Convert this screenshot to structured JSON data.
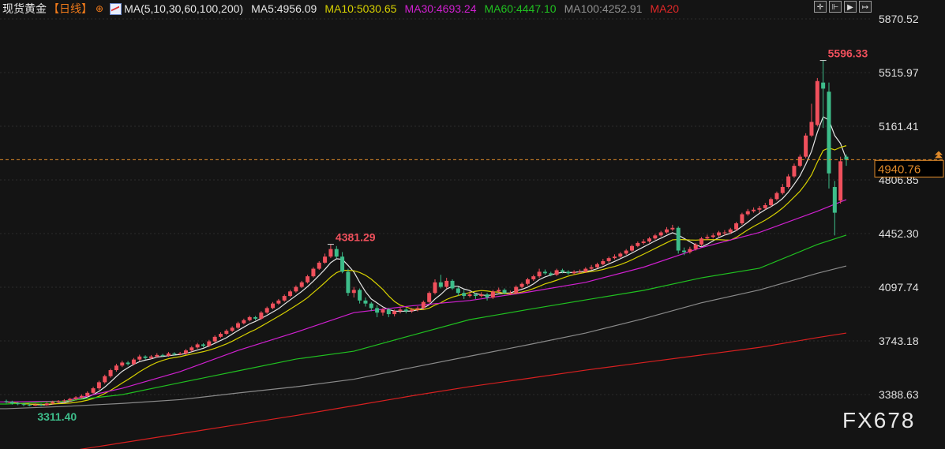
{
  "header": {
    "instrument": "现货黄金",
    "period": "【日线】",
    "indicator": "MA(5,10,30,60,100,200)",
    "ma_readouts": [
      {
        "label": "MA5:4956.09",
        "color": "#e6e6e6"
      },
      {
        "label": "MA10:5030.65",
        "color": "#d6d000"
      },
      {
        "label": "MA30:4693.24",
        "color": "#d020d0"
      },
      {
        "label": "MA60:4447.10",
        "color": "#20c020"
      },
      {
        "label": "MA100:4252.91",
        "color": "#909090"
      },
      {
        "label": "MA20",
        "color": "#e02828"
      }
    ]
  },
  "toolbar": [
    "crosshair-icon",
    "zoom-in-icon",
    "play-icon",
    "move-right-icon"
  ],
  "watermark": "FX678",
  "colors": {
    "up": "#f0505c",
    "down": "#3dbd8a",
    "background": "#141414",
    "current_price": "#e08a2a"
  },
  "chart_data": {
    "type": "candlestick",
    "title": "现货黄金 日线",
    "ylim": [
      2900,
      5900
    ],
    "yticks": [
      "5870.52",
      "5515.97",
      "5161.41",
      "4806.85",
      "4452.30",
      "4097.74",
      "3743.18",
      "3388.63"
    ],
    "current_price": "4940.76",
    "annotations": [
      {
        "text": "5596.33",
        "index": 141,
        "price": 5596.33,
        "color": "#f0505c"
      },
      {
        "text": "4381.29",
        "index": 56,
        "price": 4381.29,
        "color": "#f0505c"
      },
      {
        "text": "3311.40",
        "index": 4,
        "price": 3311.4,
        "color": "#3dbd8a"
      }
    ],
    "candles_ohlc": [
      [
        3345,
        3355,
        3330,
        3340
      ],
      [
        3340,
        3348,
        3322,
        3330
      ],
      [
        3330,
        3338,
        3318,
        3325
      ],
      [
        3325,
        3333,
        3312,
        3320
      ],
      [
        3320,
        3328,
        3311.4,
        3315
      ],
      [
        3315,
        3330,
        3313,
        3322
      ],
      [
        3322,
        3330,
        3312,
        3318
      ],
      [
        3318,
        3338,
        3314,
        3330
      ],
      [
        3330,
        3348,
        3322,
        3340
      ],
      [
        3340,
        3352,
        3332,
        3345
      ],
      [
        3345,
        3358,
        3338,
        3350
      ],
      [
        3350,
        3368,
        3342,
        3360
      ],
      [
        3360,
        3378,
        3352,
        3370
      ],
      [
        3370,
        3390,
        3362,
        3380
      ],
      [
        3380,
        3410,
        3372,
        3400
      ],
      [
        3400,
        3440,
        3392,
        3430
      ],
      [
        3430,
        3480,
        3420,
        3470
      ],
      [
        3470,
        3520,
        3460,
        3510
      ],
      [
        3510,
        3560,
        3500,
        3550
      ],
      [
        3550,
        3592,
        3540,
        3580
      ],
      [
        3580,
        3612,
        3570,
        3600
      ],
      [
        3600,
        3610,
        3580,
        3590
      ],
      [
        3590,
        3630,
        3582,
        3620
      ],
      [
        3620,
        3652,
        3610,
        3640
      ],
      [
        3640,
        3648,
        3620,
        3630
      ],
      [
        3630,
        3650,
        3622,
        3640
      ],
      [
        3640,
        3662,
        3632,
        3650
      ],
      [
        3650,
        3658,
        3636,
        3645
      ],
      [
        3645,
        3670,
        3638,
        3660
      ],
      [
        3660,
        3668,
        3645,
        3655
      ],
      [
        3655,
        3670,
        3648,
        3660
      ],
      [
        3660,
        3690,
        3652,
        3680
      ],
      [
        3680,
        3710,
        3672,
        3700
      ],
      [
        3700,
        3730,
        3692,
        3720
      ],
      [
        3720,
        3728,
        3700,
        3710
      ],
      [
        3710,
        3750,
        3702,
        3740
      ],
      [
        3740,
        3780,
        3732,
        3770
      ],
      [
        3770,
        3800,
        3762,
        3790
      ],
      [
        3790,
        3820,
        3782,
        3810
      ],
      [
        3810,
        3840,
        3802,
        3830
      ],
      [
        3830,
        3870,
        3822,
        3860
      ],
      [
        3860,
        3890,
        3852,
        3880
      ],
      [
        3880,
        3910,
        3872,
        3900
      ],
      [
        3900,
        3908,
        3880,
        3890
      ],
      [
        3890,
        3940,
        3882,
        3930
      ],
      [
        3930,
        3970,
        3922,
        3960
      ],
      [
        3960,
        4000,
        3952,
        3990
      ],
      [
        3990,
        4020,
        3982,
        4010
      ],
      [
        4010,
        4050,
        4002,
        4040
      ],
      [
        4040,
        4080,
        4032,
        4070
      ],
      [
        4070,
        4110,
        4062,
        4100
      ],
      [
        4100,
        4140,
        4092,
        4130
      ],
      [
        4130,
        4180,
        4122,
        4170
      ],
      [
        4170,
        4230,
        4162,
        4220
      ],
      [
        4220,
        4270,
        4212,
        4260
      ],
      [
        4260,
        4320,
        4252,
        4300
      ],
      [
        4300,
        4381.29,
        4290,
        4350
      ],
      [
        4350,
        4370,
        4290,
        4300
      ],
      [
        4300,
        4330,
        4190,
        4200
      ],
      [
        4200,
        4220,
        4040,
        4060
      ],
      [
        4060,
        4100,
        4030,
        4080
      ],
      [
        4080,
        4090,
        3990,
        4010
      ],
      [
        4010,
        4030,
        3970,
        3990
      ],
      [
        3990,
        4000,
        3940,
        3960
      ],
      [
        3960,
        3980,
        3900,
        3930
      ],
      [
        3930,
        3960,
        3910,
        3950
      ],
      [
        3950,
        3960,
        3900,
        3920
      ],
      [
        3920,
        3950,
        3905,
        3940
      ],
      [
        3940,
        3962,
        3925,
        3950
      ],
      [
        3950,
        3960,
        3925,
        3940
      ],
      [
        3940,
        3960,
        3928,
        3950
      ],
      [
        3950,
        3972,
        3938,
        3960
      ],
      [
        3960,
        4010,
        3950,
        4000
      ],
      [
        4000,
        4070,
        3990,
        4060
      ],
      [
        4060,
        4150,
        4050,
        4130
      ],
      [
        4130,
        4180,
        4090,
        4100
      ],
      [
        4100,
        4160,
        4090,
        4140
      ],
      [
        4140,
        4150,
        4080,
        4090
      ],
      [
        4090,
        4100,
        4040,
        4060
      ],
      [
        4060,
        4080,
        4020,
        4040
      ],
      [
        4040,
        4070,
        4030,
        4050
      ],
      [
        4050,
        4060,
        4020,
        4040
      ],
      [
        4040,
        4065,
        4030,
        4050
      ],
      [
        4050,
        4060,
        4010,
        4030
      ],
      [
        4030,
        4080,
        4020,
        4070
      ],
      [
        4070,
        4095,
        4060,
        4080
      ],
      [
        4080,
        4090,
        4050,
        4060
      ],
      [
        4060,
        4075,
        4045,
        4060
      ],
      [
        4060,
        4110,
        4050,
        4100
      ],
      [
        4100,
        4130,
        4090,
        4120
      ],
      [
        4120,
        4160,
        4110,
        4150
      ],
      [
        4150,
        4180,
        4140,
        4170
      ],
      [
        4170,
        4220,
        4160,
        4200
      ],
      [
        4200,
        4215,
        4180,
        4190
      ],
      [
        4190,
        4200,
        4170,
        4180
      ],
      [
        4180,
        4220,
        4172,
        4210
      ],
      [
        4210,
        4220,
        4190,
        4200
      ],
      [
        4200,
        4210,
        4180,
        4190
      ],
      [
        4190,
        4210,
        4182,
        4200
      ],
      [
        4200,
        4215,
        4188,
        4200
      ],
      [
        4200,
        4230,
        4192,
        4220
      ],
      [
        4220,
        4245,
        4212,
        4230
      ],
      [
        4230,
        4260,
        4222,
        4250
      ],
      [
        4250,
        4285,
        4242,
        4270
      ],
      [
        4270,
        4300,
        4260,
        4290
      ],
      [
        4290,
        4315,
        4282,
        4300
      ],
      [
        4300,
        4330,
        4292,
        4320
      ],
      [
        4320,
        4350,
        4312,
        4340
      ],
      [
        4340,
        4380,
        4332,
        4370
      ],
      [
        4370,
        4400,
        4362,
        4390
      ],
      [
        4390,
        4415,
        4380,
        4400
      ],
      [
        4400,
        4430,
        4392,
        4420
      ],
      [
        4420,
        4450,
        4412,
        4440
      ],
      [
        4440,
        4470,
        4432,
        4460
      ],
      [
        4460,
        4495,
        4452,
        4480
      ],
      [
        4480,
        4510,
        4470,
        4490
      ],
      [
        4490,
        4500,
        4320,
        4340
      ],
      [
        4340,
        4360,
        4310,
        4330
      ],
      [
        4330,
        4365,
        4320,
        4350
      ],
      [
        4350,
        4390,
        4340,
        4380
      ],
      [
        4380,
        4430,
        4370,
        4420
      ],
      [
        4420,
        4445,
        4410,
        4430
      ],
      [
        4430,
        4455,
        4420,
        4440
      ],
      [
        4440,
        4470,
        4430,
        4460
      ],
      [
        4460,
        4475,
        4440,
        4460
      ],
      [
        4460,
        4490,
        4450,
        4480
      ],
      [
        4480,
        4530,
        4470,
        4520
      ],
      [
        4520,
        4590,
        4510,
        4580
      ],
      [
        4580,
        4615,
        4570,
        4600
      ],
      [
        4600,
        4625,
        4590,
        4610
      ],
      [
        4610,
        4635,
        4590,
        4620
      ],
      [
        4620,
        4655,
        4610,
        4640
      ],
      [
        4640,
        4690,
        4630,
        4680
      ],
      [
        4680,
        4730,
        4670,
        4720
      ],
      [
        4720,
        4780,
        4710,
        4760
      ],
      [
        4760,
        4845,
        4750,
        4830
      ],
      [
        4830,
        4915,
        4820,
        4900
      ],
      [
        4900,
        4975,
        4890,
        4960
      ],
      [
        4960,
        5115,
        4950,
        5100
      ],
      [
        5100,
        5310,
        5090,
        5190
      ],
      [
        5170,
        5480,
        5160,
        5460
      ],
      [
        5450,
        5596.33,
        5150,
        5410
      ],
      [
        5390,
        5450,
        4750,
        4850
      ],
      [
        4760,
        4800,
        4440,
        4590
      ],
      [
        4670,
        4960,
        4650,
        4930
      ],
      [
        4960,
        4975,
        4900,
        4940
      ]
    ],
    "moving_averages": [
      {
        "name": "MA5",
        "period": 5,
        "color": "#e6e6e6"
      },
      {
        "name": "MA10",
        "period": 10,
        "color": "#d6d000"
      },
      {
        "name": "MA30",
        "color": "#d020d0",
        "sample_index": [
          0,
          10,
          20,
          30,
          40,
          50,
          60,
          70,
          80,
          90,
          100,
          110,
          120,
          130,
          140,
          145
        ],
        "values": [
          3340,
          3345,
          3430,
          3540,
          3680,
          3800,
          3930,
          3975,
          4010,
          4065,
          4130,
          4230,
          4360,
          4460,
          4600,
          4677
        ]
      },
      {
        "name": "MA60",
        "color": "#20c020",
        "sample_index": [
          0,
          10,
          20,
          30,
          40,
          50,
          60,
          70,
          80,
          90,
          100,
          110,
          120,
          130,
          140,
          145
        ],
        "values": [
          3326,
          3345,
          3388,
          3467,
          3545,
          3623,
          3675,
          3780,
          3884,
          3950,
          4014,
          4077,
          4160,
          4223,
          4380,
          4442
        ]
      },
      {
        "name": "MA100",
        "color": "#8a8a8a",
        "sample_index": [
          0,
          10,
          20,
          30,
          40,
          50,
          60,
          70,
          80,
          90,
          100,
          110,
          120,
          130,
          140,
          145
        ],
        "values": [
          3295,
          3310,
          3330,
          3355,
          3399,
          3440,
          3490,
          3567,
          3642,
          3717,
          3795,
          3890,
          3995,
          4080,
          4190,
          4238
        ]
      },
      {
        "name": "MA200",
        "color": "#d82020",
        "sample_index": [
          0,
          10,
          20,
          30,
          40,
          50,
          60,
          70,
          80,
          90,
          100,
          110,
          120,
          130,
          140,
          145
        ],
        "values": [
          2950,
          3010,
          3070,
          3130,
          3190,
          3250,
          3315,
          3380,
          3441,
          3495,
          3550,
          3600,
          3650,
          3700,
          3765,
          3795
        ]
      }
    ]
  }
}
